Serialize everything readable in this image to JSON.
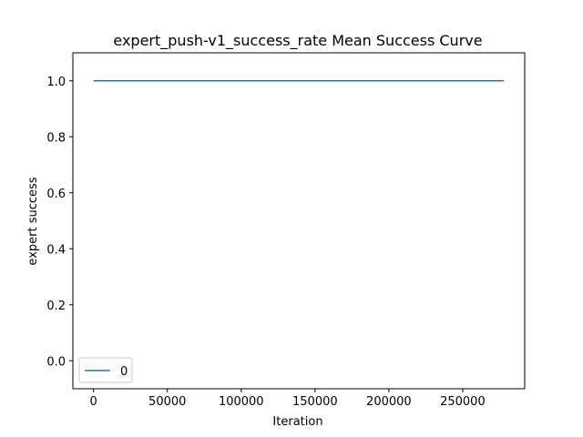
{
  "chart_data": {
    "type": "line",
    "title": "expert_push-v1_success_rate Mean Success Curve",
    "xlabel": "Iteration",
    "ylabel": "expert success",
    "xlim": [
      -14000,
      292000
    ],
    "ylim": [
      -0.1,
      1.1
    ],
    "xticks": [
      0,
      50000,
      100000,
      150000,
      200000,
      250000
    ],
    "yticks": [
      0.0,
      0.2,
      0.4,
      0.6,
      0.8,
      1.0
    ],
    "xtick_labels": [
      "0",
      "50000",
      "100000",
      "150000",
      "200000",
      "250000"
    ],
    "ytick_labels": [
      "0.0",
      "0.2",
      "0.4",
      "0.6",
      "0.8",
      "1.0"
    ],
    "grid": false,
    "legend": {
      "placement": "lower-left"
    },
    "series": [
      {
        "name": "0",
        "color": "#1f77b4",
        "x": [
          0,
          278000
        ],
        "y": [
          1.0,
          1.0
        ]
      }
    ]
  }
}
